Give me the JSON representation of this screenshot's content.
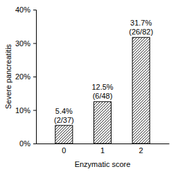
{
  "chart_data": {
    "type": "bar",
    "categories": [
      "0",
      "1",
      "2"
    ],
    "values": [
      5.4,
      12.5,
      31.7
    ],
    "value_labels": [
      "5.4%",
      "12.5%",
      "31.7%"
    ],
    "annotations": [
      "(2/37)",
      "(6/48)",
      "(26/82)"
    ],
    "x_label": "Enzymatic score",
    "y_label": "Severe pancreatitis",
    "color": "#000000",
    "ylim": [
      0,
      40
    ],
    "yticks": [
      {
        "value": 0,
        "label": "0%"
      },
      {
        "value": 10,
        "label": "10%"
      },
      {
        "value": 20,
        "label": "20%"
      },
      {
        "value": 30,
        "label": "30%"
      },
      {
        "value": 40,
        "label": "40%"
      }
    ],
    "data_labels": true,
    "grid": false
  }
}
